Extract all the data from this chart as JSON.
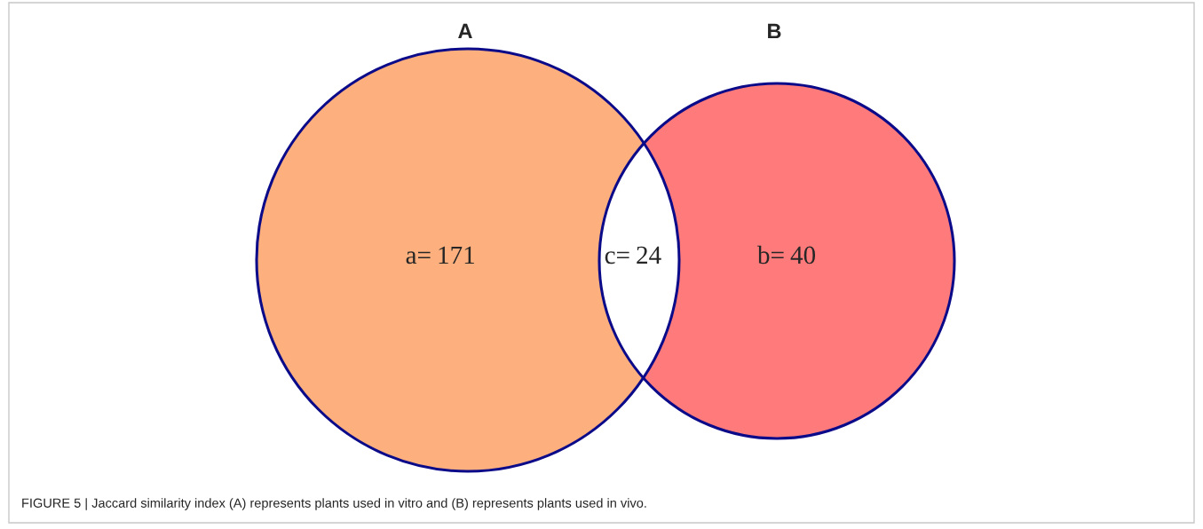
{
  "chart_data": {
    "type": "other",
    "categories": [
      "a=",
      "b=",
      "c="
    ],
    "colors": [
      "#fdb07d",
      "#ff7b7b",
      "#ffffff"
    ],
    "values": [
      171,
      40,
      24
    ],
    "data_labels": true,
    "annotations": [
      "A",
      "B",
      "FIGURE 5 | Jaccard similarity index (A) represents plants used in vitro and (B) represents plants used in vivo."
    ]
  }
}
